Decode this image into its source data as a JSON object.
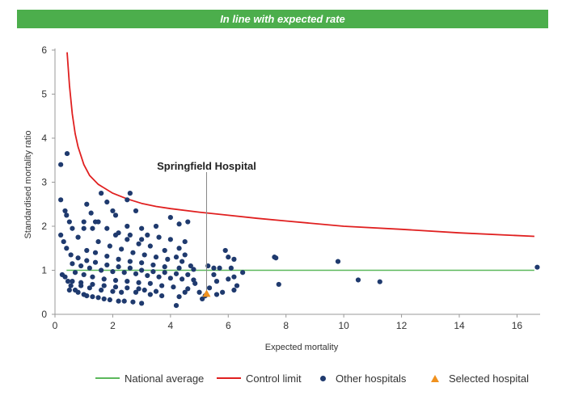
{
  "banner": {
    "text": "In line with expected rate",
    "color": "#4cae4c"
  },
  "chart_data": {
    "type": "scatter",
    "title": "",
    "xlabel": "Expected mortality",
    "ylabel": "Standardised mortality ratio",
    "xlim": [
      0,
      16.8
    ],
    "ylim": [
      0,
      6
    ],
    "x_ticks": [
      0,
      2,
      4,
      6,
      8,
      10,
      12,
      14,
      16
    ],
    "y_ticks": [
      0,
      1,
      2,
      3,
      4,
      5,
      6
    ],
    "grid": false,
    "legend_position": "bottom",
    "colors": {
      "national_average": "#5cb85c",
      "control_limit": "#e02020",
      "other_hospitals": "#1f3a6e",
      "selected_hospital": "#f0911e"
    },
    "annotation": {
      "text": "Springfield Hospital",
      "x": 5.25,
      "y": 0.47
    },
    "series": [
      {
        "name": "National average",
        "type": "line",
        "x": [
          0.4,
          16.6
        ],
        "y": [
          1,
          1
        ]
      },
      {
        "name": "Control limit",
        "type": "line",
        "x": [
          0.42,
          0.5,
          0.6,
          0.7,
          0.8,
          1.0,
          1.2,
          1.5,
          2.0,
          2.5,
          3.0,
          3.5,
          4.0,
          5.0,
          6.0,
          7.0,
          8.0,
          10.0,
          12.0,
          14.0,
          16.6
        ],
        "y": [
          5.95,
          5.2,
          4.55,
          4.1,
          3.8,
          3.4,
          3.15,
          2.95,
          2.75,
          2.62,
          2.52,
          2.45,
          2.4,
          2.32,
          2.25,
          2.18,
          2.12,
          2.0,
          1.93,
          1.85,
          1.77
        ]
      },
      {
        "name": "Other hospitals",
        "type": "scatter",
        "points": [
          [
            0.2,
            3.4
          ],
          [
            0.42,
            3.65
          ],
          [
            0.2,
            2.6
          ],
          [
            0.35,
            2.35
          ],
          [
            0.4,
            2.25
          ],
          [
            0.5,
            2.1
          ],
          [
            0.6,
            1.95
          ],
          [
            0.2,
            1.8
          ],
          [
            0.3,
            1.65
          ],
          [
            0.4,
            1.5
          ],
          [
            0.8,
            1.75
          ],
          [
            1.0,
            2.1
          ],
          [
            1.1,
            2.5
          ],
          [
            1.25,
            2.3
          ],
          [
            1.0,
            1.95
          ],
          [
            1.3,
            1.95
          ],
          [
            1.5,
            2.1
          ],
          [
            1.6,
            2.75
          ],
          [
            1.8,
            2.55
          ],
          [
            2.0,
            2.35
          ],
          [
            2.1,
            2.25
          ],
          [
            2.5,
            2.6
          ],
          [
            2.6,
            2.75
          ],
          [
            2.8,
            2.35
          ],
          [
            2.5,
            2.0
          ],
          [
            3.0,
            1.95
          ],
          [
            3.5,
            2.0
          ],
          [
            4.0,
            2.2
          ],
          [
            4.3,
            2.05
          ],
          [
            4.6,
            2.1
          ],
          [
            3.2,
            1.8
          ],
          [
            3.6,
            1.75
          ],
          [
            4.0,
            1.7
          ],
          [
            4.5,
            1.65
          ],
          [
            4.3,
            1.5
          ],
          [
            4.5,
            1.35
          ],
          [
            4.7,
            1.1
          ],
          [
            4.85,
            0.7
          ],
          [
            5.0,
            0.5
          ],
          [
            5.1,
            0.35
          ],
          [
            4.2,
            0.2
          ],
          [
            5.3,
            1.1
          ],
          [
            5.5,
            1.05
          ],
          [
            5.7,
            1.05
          ],
          [
            5.9,
            1.45
          ],
          [
            6.0,
            1.3
          ],
          [
            6.2,
            1.25
          ],
          [
            6.1,
            1.05
          ],
          [
            5.5,
            0.9
          ],
          [
            5.6,
            0.75
          ],
          [
            5.8,
            0.5
          ],
          [
            6.0,
            0.8
          ],
          [
            6.2,
            0.85
          ],
          [
            6.3,
            0.65
          ],
          [
            6.2,
            0.55
          ],
          [
            6.5,
            0.95
          ],
          [
            5.35,
            0.6
          ],
          [
            5.6,
            0.45
          ],
          [
            7.6,
            1.3
          ],
          [
            7.65,
            1.28
          ],
          [
            7.75,
            0.68
          ],
          [
            9.8,
            1.2
          ],
          [
            10.5,
            0.78
          ],
          [
            11.25,
            0.74
          ],
          [
            16.7,
            1.07
          ],
          [
            3.0,
            0.25
          ],
          [
            2.7,
            0.28
          ],
          [
            2.2,
            0.3
          ],
          [
            1.7,
            0.35
          ],
          [
            1.3,
            0.4
          ],
          [
            1.0,
            0.45
          ],
          [
            0.7,
            0.55
          ],
          [
            0.55,
            0.65
          ],
          [
            0.45,
            0.75
          ],
          [
            0.35,
            0.85
          ],
          [
            0.25,
            0.9
          ],
          [
            0.5,
            0.55
          ],
          [
            0.8,
            0.5
          ],
          [
            1.1,
            0.42
          ],
          [
            1.5,
            0.38
          ],
          [
            1.9,
            0.33
          ],
          [
            2.4,
            0.3
          ],
          [
            2.8,
            0.5
          ],
          [
            3.3,
            0.45
          ],
          [
            3.7,
            0.42
          ],
          [
            4.3,
            0.4
          ],
          [
            4.5,
            0.5
          ],
          [
            5.2,
            0.42
          ],
          [
            0.9,
            0.65
          ],
          [
            1.2,
            0.6
          ],
          [
            1.6,
            0.55
          ],
          [
            2.0,
            0.52
          ],
          [
            2.3,
            0.5
          ],
          [
            0.6,
            0.75
          ],
          [
            0.9,
            0.72
          ],
          [
            1.3,
            0.68
          ],
          [
            1.7,
            0.65
          ],
          [
            2.1,
            0.62
          ],
          [
            2.5,
            0.6
          ],
          [
            2.9,
            0.58
          ],
          [
            3.1,
            0.55
          ],
          [
            3.5,
            0.52
          ],
          [
            0.7,
            0.95
          ],
          [
            1.0,
            0.9
          ],
          [
            1.3,
            0.85
          ],
          [
            1.7,
            0.8
          ],
          [
            2.1,
            0.77
          ],
          [
            2.5,
            0.75
          ],
          [
            2.9,
            0.72
          ],
          [
            3.3,
            0.7
          ],
          [
            3.7,
            0.65
          ],
          [
            4.1,
            0.62
          ],
          [
            4.6,
            0.58
          ],
          [
            0.6,
            1.15
          ],
          [
            0.9,
            1.1
          ],
          [
            1.2,
            1.05
          ],
          [
            1.6,
            1.0
          ],
          [
            2.0,
            0.97
          ],
          [
            2.4,
            0.95
          ],
          [
            2.8,
            0.92
          ],
          [
            3.2,
            0.88
          ],
          [
            3.6,
            0.85
          ],
          [
            4.0,
            0.82
          ],
          [
            4.4,
            0.8
          ],
          [
            4.8,
            0.78
          ],
          [
            0.55,
            1.35
          ],
          [
            0.8,
            1.28
          ],
          [
            1.1,
            1.22
          ],
          [
            1.4,
            1.18
          ],
          [
            1.8,
            1.12
          ],
          [
            2.2,
            1.08
          ],
          [
            2.6,
            1.05
          ],
          [
            3.0,
            1.0
          ],
          [
            3.4,
            0.97
          ],
          [
            3.8,
            0.95
          ],
          [
            4.2,
            0.92
          ],
          [
            4.6,
            0.9
          ],
          [
            1.1,
            1.45
          ],
          [
            1.4,
            1.4
          ],
          [
            1.8,
            1.32
          ],
          [
            2.2,
            1.25
          ],
          [
            2.6,
            1.2
          ],
          [
            3.0,
            1.17
          ],
          [
            3.4,
            1.12
          ],
          [
            3.8,
            1.08
          ],
          [
            4.3,
            1.05
          ],
          [
            4.8,
            1.02
          ],
          [
            1.5,
            1.65
          ],
          [
            1.9,
            1.55
          ],
          [
            2.3,
            1.48
          ],
          [
            2.7,
            1.4
          ],
          [
            3.1,
            1.35
          ],
          [
            3.5,
            1.3
          ],
          [
            3.9,
            1.25
          ],
          [
            4.4,
            1.2
          ],
          [
            2.1,
            1.8
          ],
          [
            2.5,
            1.7
          ],
          [
            2.9,
            1.6
          ],
          [
            3.3,
            1.55
          ],
          [
            3.8,
            1.45
          ],
          [
            4.2,
            1.3
          ],
          [
            1.4,
            2.1
          ],
          [
            1.8,
            1.95
          ],
          [
            2.2,
            1.85
          ],
          [
            2.6,
            1.8
          ],
          [
            3.0,
            1.7
          ]
        ]
      },
      {
        "name": "Selected hospital",
        "type": "scatter",
        "marker": "triangle",
        "points": [
          [
            5.25,
            0.47
          ]
        ]
      }
    ]
  }
}
